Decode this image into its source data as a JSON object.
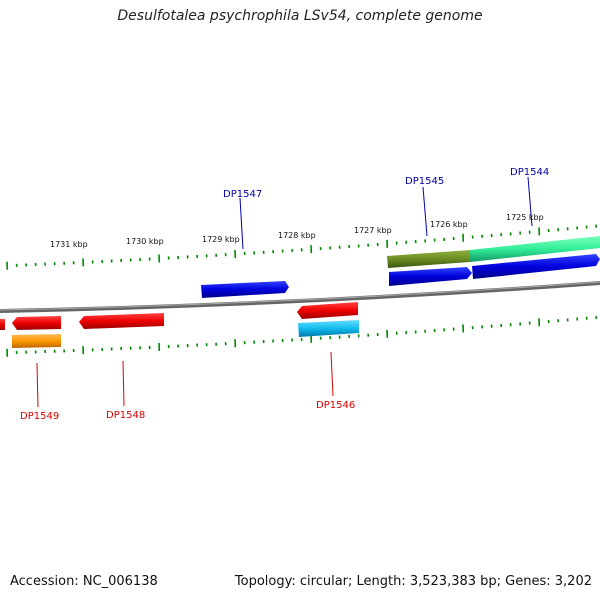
{
  "title": "Desulfotalea psychrophila LSv54, complete genome",
  "footer": {
    "accession": "Accession: NC_006138",
    "summary": "Topology: circular; Length: 3,523,383 bp; Genes: 3,202"
  },
  "ticks": {
    "positions_kbp": [
      "1731 kbp",
      "1730 kbp",
      "1729 kbp",
      "1728 kbp",
      "1727 kbp",
      "1726 kbp",
      "1725 kbp"
    ]
  },
  "genes_top": [
    "DP1547",
    "DP1545",
    "DP1544"
  ],
  "genes_bottom": [
    "DP1549",
    "DP1548",
    "DP1546"
  ],
  "colors": {
    "forward_strand": "#0000e0",
    "reverse_strand": "#ee0000",
    "olive": "#6b8e23",
    "aqua_green": "#33ee99",
    "cyan": "#11bbee",
    "orange": "#ff9900",
    "tick": "#008800",
    "backbone": "#777777"
  }
}
